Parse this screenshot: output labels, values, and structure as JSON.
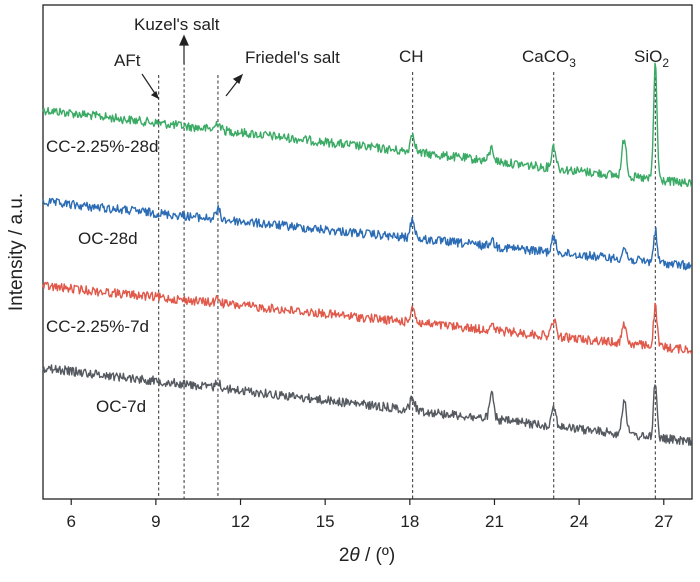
{
  "chart_data": {
    "type": "line",
    "xlabel_pre": "2",
    "xlabel_theta": "θ",
    "xlabel_post": " / (º)",
    "ylabel": "Intensity / a.u.",
    "xlim": [
      5,
      28
    ],
    "x_ticks": [
      6,
      9,
      12,
      15,
      18,
      21,
      24,
      27
    ],
    "y_ticks_shown": false,
    "grid": false,
    "reference_lines": [
      {
        "x": 9.1,
        "label": "AFt"
      },
      {
        "x": 10.0,
        "label": "Kuzel's salt"
      },
      {
        "x": 11.2,
        "label": "Friedel's salt"
      },
      {
        "x": 18.1,
        "label": "CH"
      },
      {
        "x": 23.1,
        "label": "CaCO",
        "sub": "3"
      },
      {
        "x": 26.7,
        "label": "SiO",
        "sub": "2"
      }
    ],
    "series": [
      {
        "name": "CC-2.25%-28d",
        "color": "#3aaa64",
        "start": 0.92,
        "end": 0.52,
        "peaks": [
          [
            11.2,
            0.05
          ],
          [
            18.1,
            0.12
          ],
          [
            20.9,
            0.08
          ],
          [
            23.1,
            0.14
          ],
          [
            25.6,
            0.24
          ],
          [
            26.7,
            0.72
          ]
        ]
      },
      {
        "name": "OC-28d",
        "color": "#2b6cb5",
        "start": 0.74,
        "end": 0.35,
        "peaks": [
          [
            11.2,
            0.06
          ],
          [
            18.1,
            0.12
          ],
          [
            20.9,
            0.04
          ],
          [
            23.1,
            0.09
          ],
          [
            25.6,
            0.07
          ],
          [
            26.7,
            0.2
          ]
        ]
      },
      {
        "name": "CC-2.25%-7d",
        "color": "#e0594a",
        "start": 0.55,
        "end": 0.18,
        "peaks": [
          [
            11.2,
            0.03
          ],
          [
            18.1,
            0.1
          ],
          [
            20.9,
            0.03
          ],
          [
            23.1,
            0.1
          ],
          [
            25.6,
            0.12
          ],
          [
            26.7,
            0.25
          ]
        ]
      },
      {
        "name": "OC-7d",
        "color": "#555a60",
        "start": 0.35,
        "end": 0.0,
        "peaks": [
          [
            11.2,
            0.04
          ],
          [
            18.1,
            0.08
          ],
          [
            20.9,
            0.15
          ],
          [
            23.1,
            0.12
          ],
          [
            25.6,
            0.22
          ],
          [
            26.7,
            0.36
          ]
        ]
      }
    ]
  }
}
